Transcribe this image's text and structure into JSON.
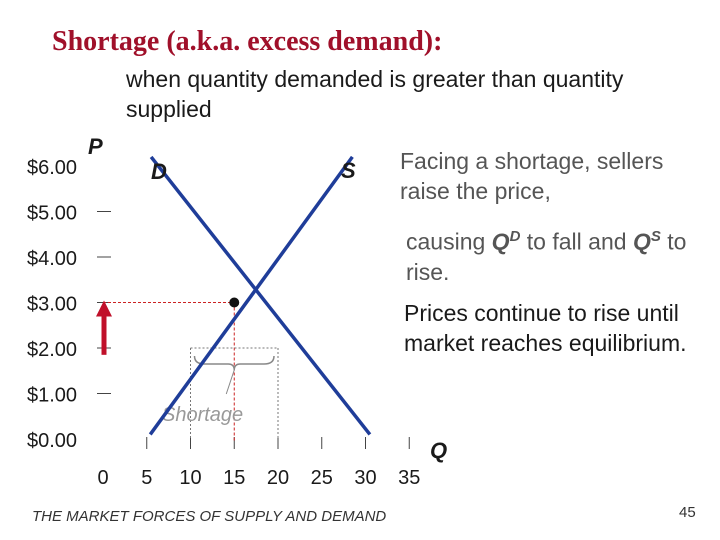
{
  "title": "Shortage (a.k.a. excess demand):",
  "subtitle": "when quantity demanded is greater than quantity supplied",
  "notes": {
    "n1": "Facing a shortage, sellers raise the price,",
    "n2_a": "causing ",
    "n2_q": "Q",
    "n2_d": "D",
    "n2_b": " to fall and ",
    "n2_s": "S",
    "n2_c": " to rise.",
    "n3": "Prices continue to rise until market reaches equilibrium."
  },
  "footer": "THE MARKET FORCES OF SUPPLY AND DEMAND",
  "page_number": "45",
  "colors": {
    "title": "#a0102a",
    "curve": "#1f3d99",
    "arrow": "#c0102a",
    "dotted": "#cc2222"
  },
  "chart_data": {
    "type": "line",
    "y_axis_label": "P",
    "x_axis_label": "Q",
    "y_ticks": [
      "$0.00",
      "$1.00",
      "$2.00",
      "$3.00",
      "$4.00",
      "$5.00",
      "$6.00"
    ],
    "x_ticks": [
      "0",
      "5",
      "10",
      "15",
      "20",
      "25",
      "30",
      "35"
    ],
    "xlim": [
      0,
      35
    ],
    "ylim": [
      0,
      6
    ],
    "series": [
      {
        "name": "D",
        "points": [
          [
            5.5,
            6.2
          ],
          [
            30.5,
            0.1
          ]
        ]
      },
      {
        "name": "S",
        "points": [
          [
            5.4,
            0.1
          ],
          [
            28.5,
            6.2
          ]
        ]
      }
    ],
    "equilibrium": {
      "q": 15,
      "p": 3
    },
    "shortage_price": 2,
    "shortage_range": [
      10,
      20
    ],
    "shortage_label": "Shortage",
    "arrow": {
      "from_p": 1.85,
      "to_p": 3.0
    }
  }
}
